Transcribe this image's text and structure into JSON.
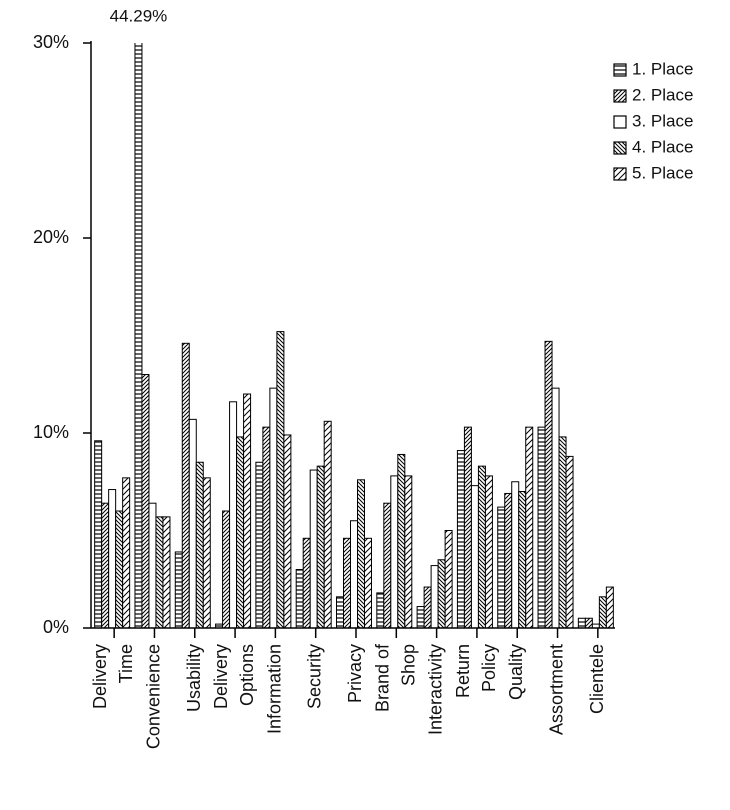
{
  "chart_data": {
    "type": "bar",
    "categories": [
      "Delivery\nTime",
      "Convenience",
      "Usability",
      "Delivery\nOptions",
      "Information",
      "Security",
      "Privacy",
      "Brand of\nShop",
      "Interactivity",
      "Return\nPolicy",
      "Quality",
      "Assortment",
      "Clientele"
    ],
    "series": [
      {
        "name": "1. Place",
        "color": "#000000",
        "pattern": "horizontal",
        "values": [
          9.6,
          44.29,
          3.9,
          0.2,
          8.5,
          3.0,
          1.6,
          1.8,
          1.1,
          9.1,
          6.2,
          10.3,
          0.5
        ],
        "value_labels": [
          null,
          "44.29%",
          null,
          null,
          null,
          null,
          null,
          null,
          null,
          null,
          null,
          null,
          null
        ]
      },
      {
        "name": "2. Place",
        "color": "#000000",
        "pattern": "diagonal-up",
        "values": [
          6.4,
          13.0,
          14.6,
          6.0,
          10.3,
          4.6,
          4.6,
          6.4,
          2.1,
          10.3,
          6.9,
          14.7,
          0.5
        ]
      },
      {
        "name": "3. Place",
        "color": "#000000",
        "pattern": "none",
        "values": [
          7.1,
          6.4,
          10.7,
          11.6,
          12.3,
          8.1,
          5.5,
          7.8,
          3.2,
          7.3,
          7.5,
          12.3,
          0.2
        ]
      },
      {
        "name": "4. Place",
        "color": "#000000",
        "pattern": "diagonal-down",
        "values": [
          6.0,
          5.7,
          8.5,
          9.8,
          15.2,
          8.3,
          7.6,
          8.9,
          3.5,
          8.3,
          7.0,
          9.8,
          1.6
        ]
      },
      {
        "name": "5. Place",
        "color": "#000000",
        "pattern": "diagonal-up-wide",
        "values": [
          7.7,
          5.7,
          7.7,
          12.0,
          9.9,
          10.6,
          4.6,
          7.8,
          5.0,
          7.8,
          10.3,
          8.8,
          2.1
        ]
      }
    ],
    "ylim": [
      0,
      30
    ],
    "yticks": [
      {
        "value": 0,
        "label": "0%"
      },
      {
        "value": 10,
        "label": "10%"
      },
      {
        "value": 20,
        "label": "20%"
      },
      {
        "value": 30,
        "label": "30%"
      }
    ],
    "legend": "upper right",
    "grid": false
  }
}
